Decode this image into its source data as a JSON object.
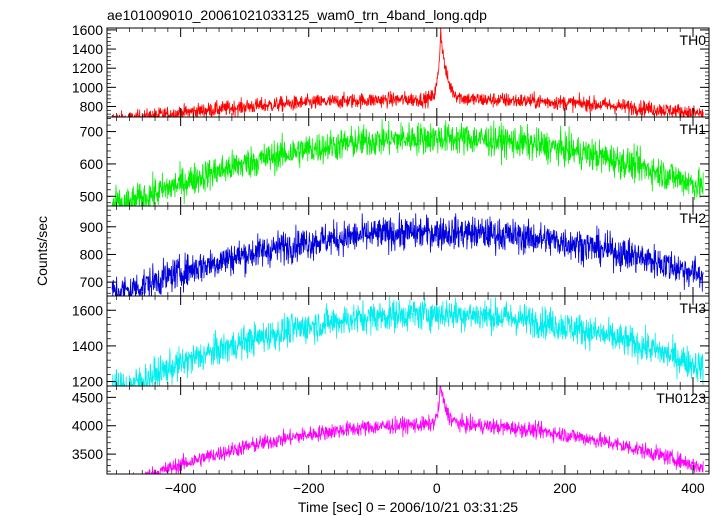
{
  "chart_data": {
    "title": "ae101009010_20061021033125_wam0_trn_4band_long.qdp",
    "xlabel": "Time [sec] 0 = 2006/10/21 03:31:25",
    "ylabel": "Counts/sec",
    "type": "line",
    "xlim": [
      -515,
      425
    ],
    "x_ticks": [
      -400,
      -200,
      0,
      200,
      400
    ],
    "x_tick_labels": [
      "−400",
      "−200",
      "0",
      "200",
      "400"
    ],
    "panels": [
      {
        "name": "TH0",
        "color": "#ff0000",
        "ylim": [
          690,
          1620
        ],
        "y_ticks": [
          800,
          1000,
          1200,
          1400,
          1600
        ],
        "baseline": {
          "edge": 720,
          "center": 875,
          "noise": 40
        },
        "burst": {
          "peak_time": 6,
          "peak_value": 1600,
          "rise_width": 4,
          "decay_width": 9
        },
        "points": [
          {
            "x": -500,
            "y": 730
          },
          {
            "x": -400,
            "y": 760
          },
          {
            "x": -300,
            "y": 800
          },
          {
            "x": -200,
            "y": 840
          },
          {
            "x": -100,
            "y": 865
          },
          {
            "x": -10,
            "y": 875
          },
          {
            "x": 6,
            "y": 1600
          },
          {
            "x": 30,
            "y": 900
          },
          {
            "x": 100,
            "y": 860
          },
          {
            "x": 200,
            "y": 820
          },
          {
            "x": 300,
            "y": 780
          },
          {
            "x": 410,
            "y": 730
          }
        ]
      },
      {
        "name": "TH1",
        "color": "#00ee00",
        "ylim": [
          470,
          745
        ],
        "y_ticks": [
          500,
          600,
          700
        ],
        "baseline": {
          "edge": 525,
          "center": 680,
          "noise": 25
        },
        "points": [
          {
            "x": -500,
            "y": 525
          },
          {
            "x": -400,
            "y": 570
          },
          {
            "x": -300,
            "y": 615
          },
          {
            "x": -200,
            "y": 650
          },
          {
            "x": -100,
            "y": 675
          },
          {
            "x": 0,
            "y": 680
          },
          {
            "x": 100,
            "y": 665
          },
          {
            "x": 200,
            "y": 635
          },
          {
            "x": 300,
            "y": 595
          },
          {
            "x": 410,
            "y": 540
          }
        ]
      },
      {
        "name": "TH2",
        "color": "#0000dd",
        "ylim": [
          650,
          975
        ],
        "y_ticks": [
          700,
          800,
          900
        ],
        "baseline": {
          "edge": 720,
          "center": 880,
          "noise": 30
        },
        "points": [
          {
            "x": -500,
            "y": 725
          },
          {
            "x": -400,
            "y": 765
          },
          {
            "x": -300,
            "y": 810
          },
          {
            "x": -200,
            "y": 850
          },
          {
            "x": -100,
            "y": 875
          },
          {
            "x": 0,
            "y": 882
          },
          {
            "x": 100,
            "y": 865
          },
          {
            "x": 200,
            "y": 830
          },
          {
            "x": 300,
            "y": 785
          },
          {
            "x": 410,
            "y": 725
          }
        ]
      },
      {
        "name": "TH3",
        "color": "#00eeee",
        "ylim": [
          1175,
          1680
        ],
        "y_ticks": [
          1200,
          1400,
          1600
        ],
        "baseline": {
          "edge": 1270,
          "center": 1580,
          "noise": 45
        },
        "points": [
          {
            "x": -500,
            "y": 1270
          },
          {
            "x": -400,
            "y": 1350
          },
          {
            "x": -300,
            "y": 1440
          },
          {
            "x": -200,
            "y": 1510
          },
          {
            "x": -100,
            "y": 1560
          },
          {
            "x": 0,
            "y": 1575
          },
          {
            "x": 100,
            "y": 1545
          },
          {
            "x": 200,
            "y": 1480
          },
          {
            "x": 300,
            "y": 1400
          },
          {
            "x": 410,
            "y": 1290
          }
        ]
      },
      {
        "name": "TH0123",
        "color": "#ff00ff",
        "ylim": [
          3150,
          4700
        ],
        "y_ticks": [
          3500,
          4000,
          4500
        ],
        "baseline": {
          "edge": 3240,
          "center": 4020,
          "noise": 70
        },
        "burst": {
          "peak_time": 6,
          "peak_value": 4700,
          "rise_width": 4,
          "decay_width": 9
        },
        "points": [
          {
            "x": -500,
            "y": 3250
          },
          {
            "x": -400,
            "y": 3450
          },
          {
            "x": -300,
            "y": 3650
          },
          {
            "x": -200,
            "y": 3820
          },
          {
            "x": -100,
            "y": 3960
          },
          {
            "x": -10,
            "y": 4010
          },
          {
            "x": 6,
            "y": 4700
          },
          {
            "x": 30,
            "y": 4080
          },
          {
            "x": 100,
            "y": 3980
          },
          {
            "x": 200,
            "y": 3850
          },
          {
            "x": 300,
            "y": 3600
          },
          {
            "x": 410,
            "y": 3260
          }
        ]
      }
    ]
  }
}
